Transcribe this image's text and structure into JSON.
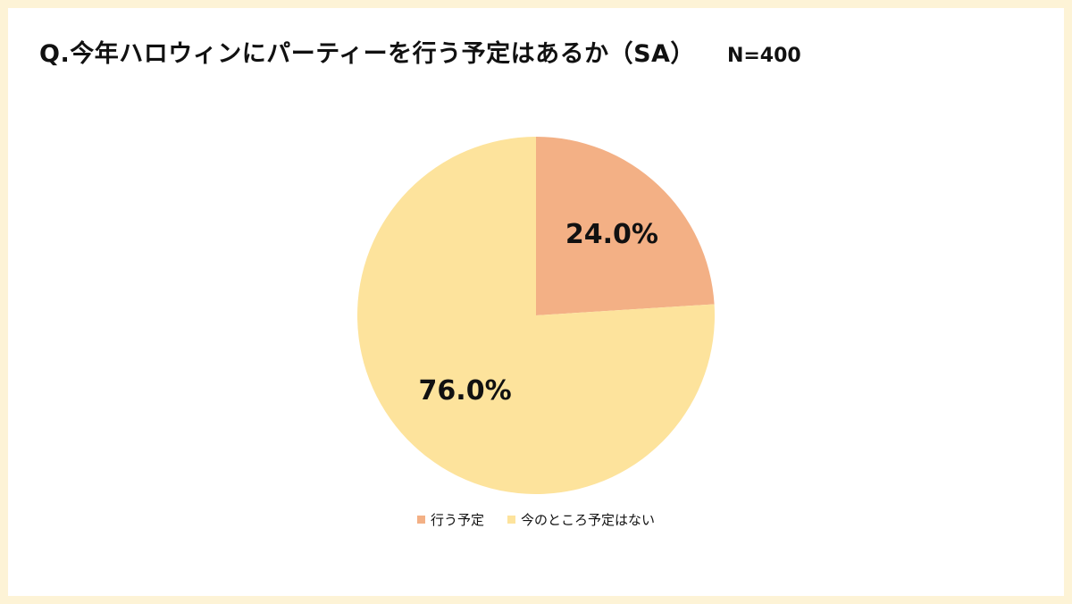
{
  "header": {
    "title": "Q.今年ハロウィンにパーティーを行う予定はあるか（SA）",
    "sample": "N=400"
  },
  "chart_data": {
    "type": "pie",
    "title": "Q.今年ハロウィンにパーティーを行う予定はあるか（SA）",
    "categories": [
      "行う予定",
      "今のところ予定はない"
    ],
    "values": [
      24.0,
      76.0
    ],
    "labels": [
      "24.0%",
      "76.0%"
    ],
    "colors": [
      "#f3b085",
      "#fde39c"
    ],
    "start": "12 o'clock, clockwise",
    "legend": "bottom"
  }
}
